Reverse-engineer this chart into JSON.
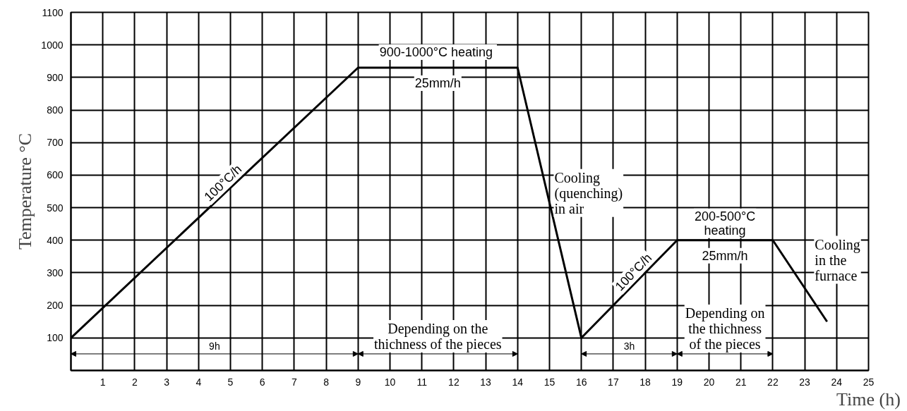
{
  "chart_data": {
    "type": "line",
    "xlabel": "Time (h)",
    "ylabel": "Temperature °C",
    "x": [
      0,
      9,
      14,
      16,
      19,
      22,
      23.7
    ],
    "series": [
      {
        "color": "#000000",
        "values": [
          100,
          930,
          930,
          100,
          400,
          400,
          150
        ]
      }
    ],
    "xlim": [
      0,
      25
    ],
    "ylim": [
      0,
      1100
    ],
    "xticks": [
      1,
      2,
      3,
      4,
      5,
      6,
      7,
      8,
      9,
      10,
      11,
      12,
      13,
      14,
      15,
      16,
      17,
      18,
      19,
      20,
      21,
      22,
      23,
      24,
      25
    ],
    "yticks": [
      100,
      200,
      300,
      400,
      500,
      600,
      700,
      800,
      900,
      1000,
      1100
    ],
    "grid": true,
    "marker": "none",
    "line_style": "solid",
    "annotations": [
      "100°C/h",
      "900-1000°C  heating",
      "25mm/h",
      "Cooling\n(quenching)\nin air",
      "200-500°C\nheating",
      "25mm/h",
      "Cooling\nin the\nfurnace",
      "Depending on the\nthichness of the pieces",
      "Depending on\nthe thichness\nof the pieces",
      "100°C/h",
      "9h",
      "3h"
    ]
  }
}
